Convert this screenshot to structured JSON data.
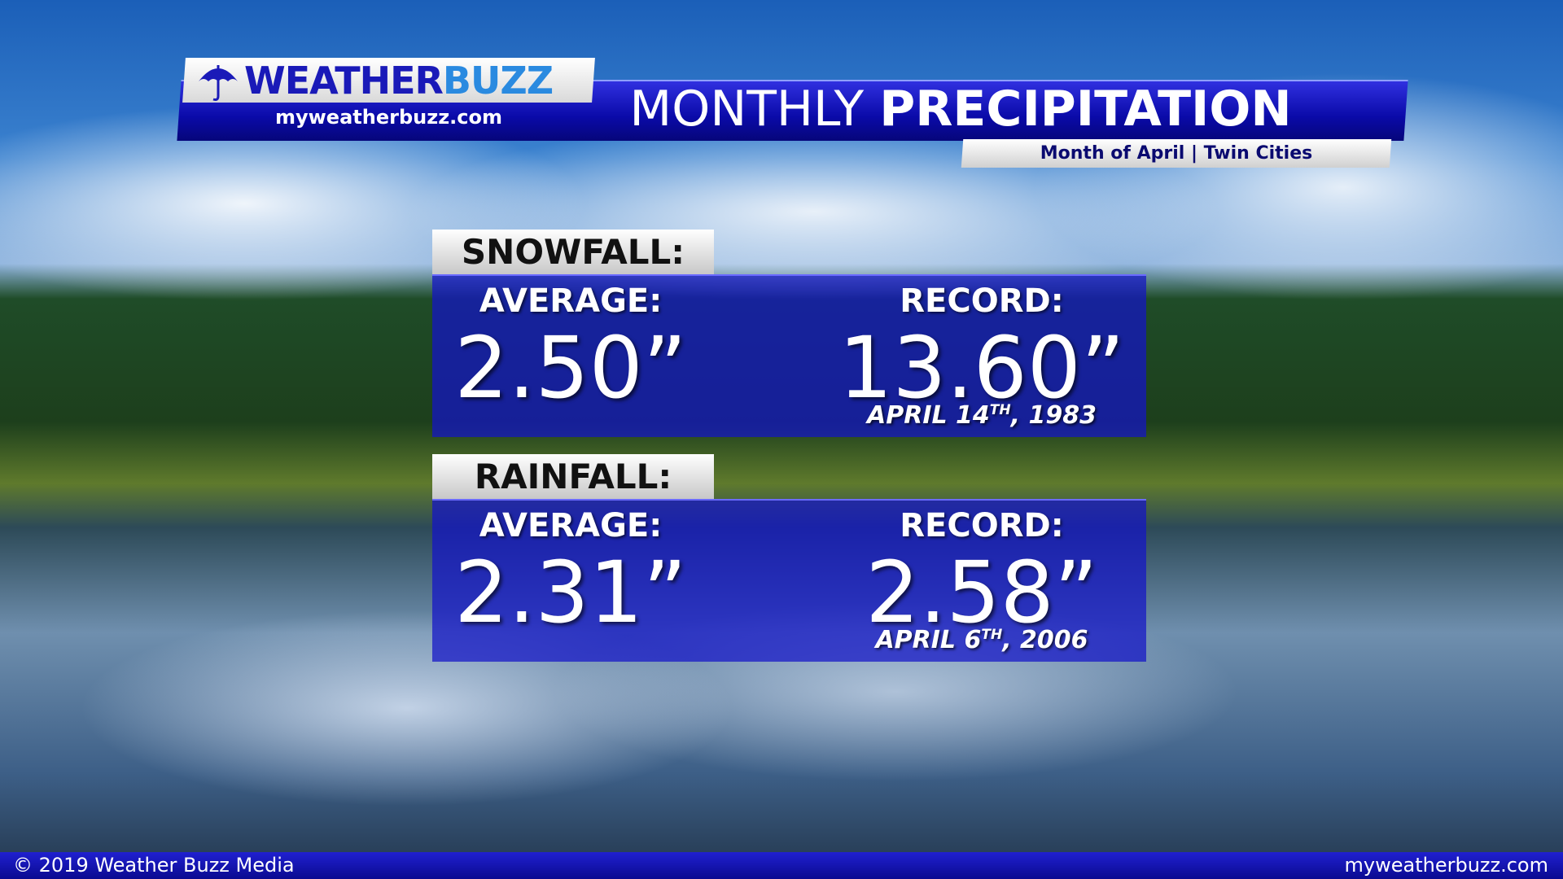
{
  "header": {
    "brand_weather": "WEATHER",
    "brand_buzz": "BUZZ",
    "brand_url": "myweatherbuzz.com",
    "title_light": "MONTHLY",
    "title_bold": "PRECIPITATION",
    "subtitle": "Month of April | Twin Cities"
  },
  "panels": [
    {
      "heading": "SNOWFALL:",
      "average_label": "AVERAGE:",
      "average_value": "2.50”",
      "record_label": "RECORD:",
      "record_value": "13.60”",
      "record_date": {
        "day": "APRIL 14",
        "suffix": "TH",
        "year": ", 1983"
      }
    },
    {
      "heading": "RAINFALL:",
      "average_label": "AVERAGE:",
      "average_value": "2.31”",
      "record_label": "RECORD:",
      "record_value": "2.58”",
      "record_date": {
        "day": "APRIL 6",
        "suffix": "TH",
        "year": ", 2006"
      }
    }
  ],
  "footer": {
    "copyright": "© 2019 Weather Buzz Media",
    "url": "myweatherbuzz.com"
  }
}
